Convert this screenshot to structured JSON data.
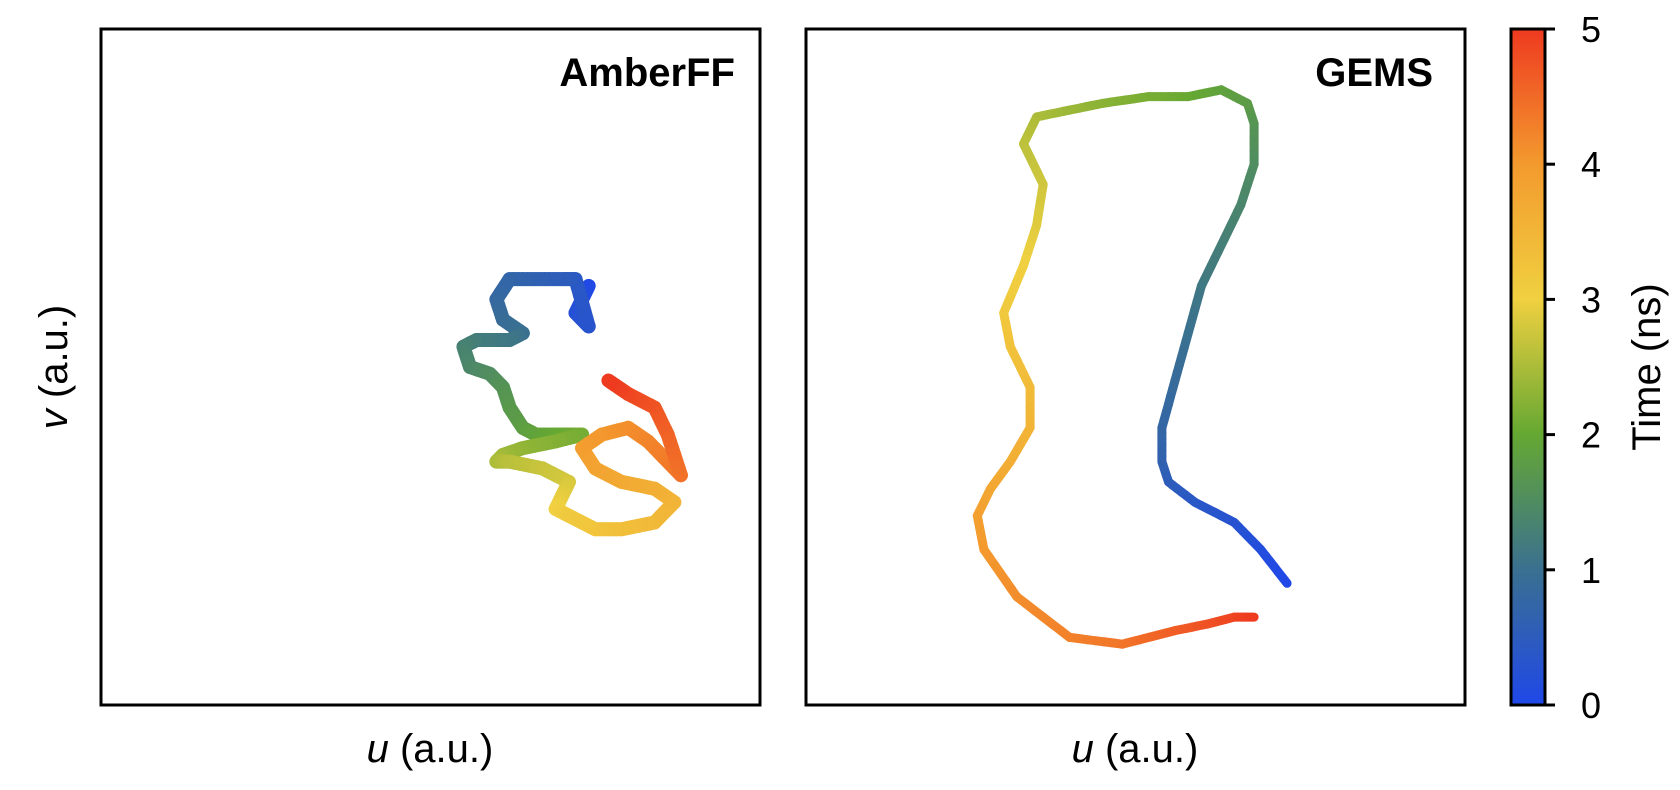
{
  "chart_data": [
    {
      "type": "line",
      "panel_label": "AmberFF",
      "xlabel_var": "u",
      "xlabel_unit": " (a.u.)",
      "ylabel_var": "v",
      "ylabel_unit": " (a.u.)",
      "axis_ticks": "none",
      "color_by": "Time (ns)",
      "series": [
        {
          "x": [
            0.74,
            0.73,
            0.72,
            0.74,
            0.72,
            0.7,
            0.66,
            0.62,
            0.6,
            0.61,
            0.64,
            0.62,
            0.57,
            0.55,
            0.56,
            0.59,
            0.61,
            0.62,
            0.64,
            0.66,
            0.7,
            0.73,
            0.69,
            0.64,
            0.61,
            0.6,
            0.62,
            0.67,
            0.71,
            0.7,
            0.69,
            0.71,
            0.75,
            0.79,
            0.84,
            0.87,
            0.84,
            0.79,
            0.75,
            0.73,
            0.76,
            0.8,
            0.83,
            0.86,
            0.88,
            0.86,
            0.84,
            0.8,
            0.77
          ],
          "y": [
            0.62,
            0.6,
            0.58,
            0.56,
            0.63,
            0.63,
            0.63,
            0.63,
            0.6,
            0.57,
            0.55,
            0.54,
            0.54,
            0.53,
            0.5,
            0.49,
            0.47,
            0.44,
            0.41,
            0.4,
            0.4,
            0.4,
            0.39,
            0.38,
            0.37,
            0.36,
            0.36,
            0.35,
            0.33,
            0.31,
            0.29,
            0.28,
            0.26,
            0.26,
            0.27,
            0.3,
            0.32,
            0.33,
            0.35,
            0.38,
            0.4,
            0.41,
            0.39,
            0.36,
            0.34,
            0.4,
            0.44,
            0.46,
            0.48
          ],
          "t": [
            0.0,
            0.1,
            0.2,
            0.3,
            0.4,
            0.5,
            0.6,
            0.7,
            0.8,
            0.9,
            1.0,
            1.1,
            1.2,
            1.3,
            1.4,
            1.5,
            1.6,
            1.7,
            1.8,
            1.9,
            2.0,
            2.1,
            2.2,
            2.3,
            2.4,
            2.5,
            2.6,
            2.7,
            2.8,
            2.9,
            3.0,
            3.1,
            3.2,
            3.3,
            3.4,
            3.5,
            3.6,
            3.7,
            3.8,
            3.9,
            4.0,
            4.1,
            4.2,
            4.3,
            4.4,
            4.55,
            4.7,
            4.85,
            5.0
          ]
        }
      ]
    },
    {
      "type": "line",
      "panel_label": "GEMS",
      "xlabel_var": "u",
      "xlabel_unit": " (a.u.)",
      "axis_ticks": "none",
      "color_by": "Time (ns)",
      "series": [
        {
          "x": [
            0.73,
            0.69,
            0.65,
            0.59,
            0.55,
            0.54,
            0.54,
            0.56,
            0.58,
            0.6,
            0.63,
            0.66,
            0.68,
            0.68,
            0.67,
            0.63,
            0.58,
            0.52,
            0.45,
            0.4,
            0.35,
            0.33,
            0.36,
            0.35,
            0.33,
            0.3,
            0.31,
            0.34,
            0.34,
            0.31,
            0.28,
            0.26,
            0.27,
            0.32,
            0.4,
            0.48,
            0.52,
            0.56,
            0.61,
            0.65,
            0.68
          ],
          "y": [
            0.18,
            0.23,
            0.27,
            0.3,
            0.33,
            0.36,
            0.41,
            0.48,
            0.55,
            0.62,
            0.68,
            0.74,
            0.8,
            0.86,
            0.89,
            0.91,
            0.9,
            0.9,
            0.89,
            0.88,
            0.87,
            0.83,
            0.77,
            0.71,
            0.65,
            0.58,
            0.53,
            0.47,
            0.41,
            0.36,
            0.32,
            0.28,
            0.23,
            0.16,
            0.1,
            0.09,
            0.1,
            0.11,
            0.12,
            0.13,
            0.13
          ],
          "t": [
            0.0,
            0.125,
            0.25,
            0.375,
            0.5,
            0.625,
            0.75,
            0.875,
            1.0,
            1.125,
            1.25,
            1.375,
            1.5,
            1.625,
            1.75,
            1.875,
            2.0,
            2.125,
            2.25,
            2.375,
            2.5,
            2.625,
            2.75,
            2.875,
            3.0,
            3.125,
            3.25,
            3.375,
            3.5,
            3.625,
            3.75,
            3.875,
            4.0,
            4.125,
            4.25,
            4.375,
            4.5,
            4.625,
            4.75,
            4.875,
            5.0
          ]
        }
      ]
    }
  ],
  "colorbar": {
    "label": "Time (ns)",
    "range": [
      0,
      5
    ],
    "ticks": [
      "0",
      "1",
      "2",
      "3",
      "4",
      "5"
    ],
    "colors": [
      "#1f48e8",
      "#3a7090",
      "#65a832",
      "#f0d040",
      "#f39a2e",
      "#ee3a20"
    ]
  }
}
